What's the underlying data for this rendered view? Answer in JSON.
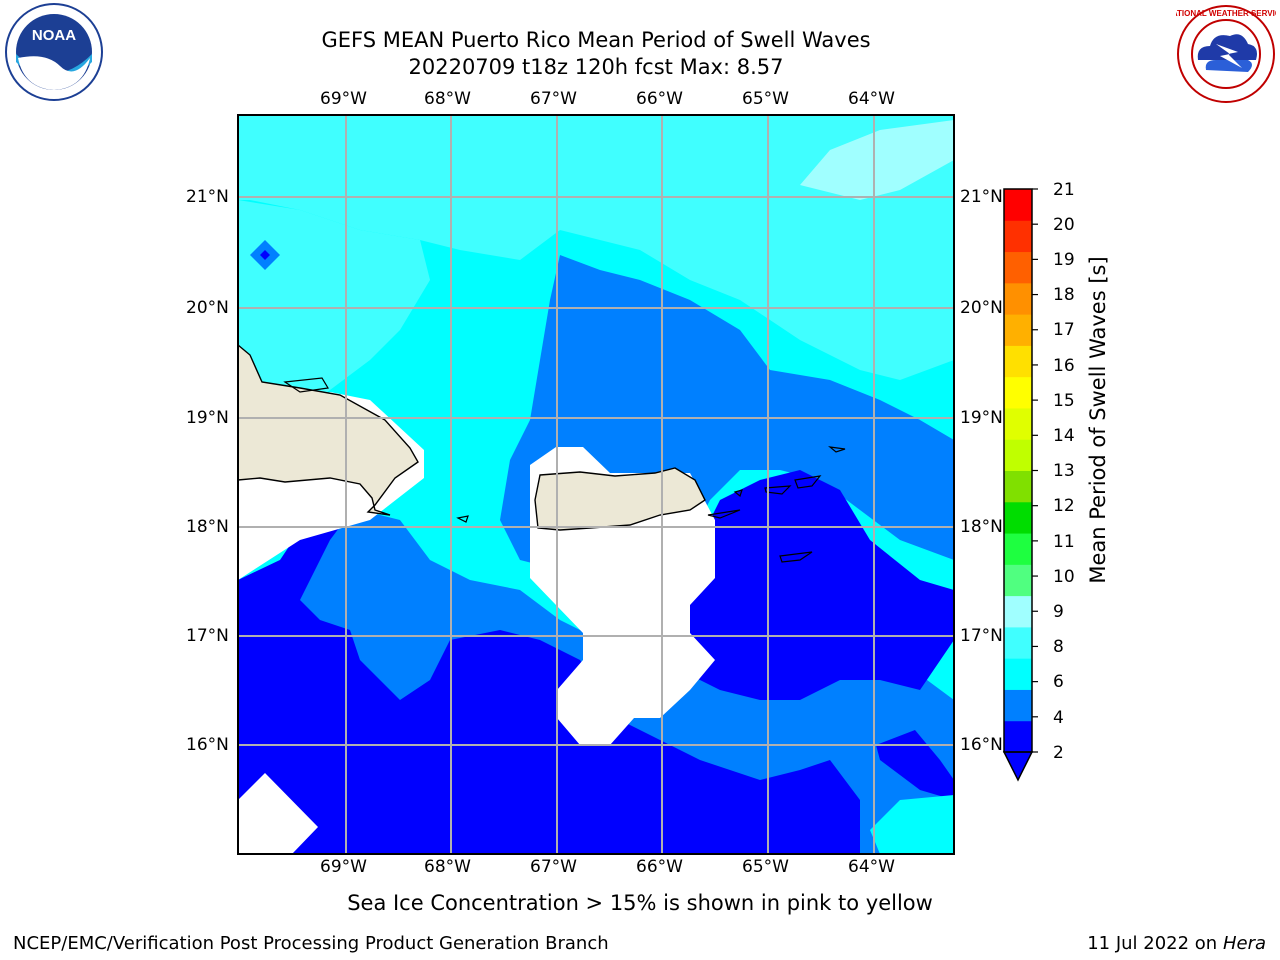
{
  "title": {
    "line1": "GEFS MEAN Puerto Rico Mean Period of Swell Waves",
    "line2": "20220709 t18z 120h fcst   Max: 8.57"
  },
  "logos": {
    "left": "noaa-logo",
    "right": "national-weather-service-logo",
    "left_text": "NOAA",
    "right_text": "NATIONAL WEATHER SERVICE"
  },
  "axes": {
    "lon_labels": [
      "69°W",
      "68°W",
      "67°W",
      "66°W",
      "65°W",
      "64°W"
    ],
    "lat_labels": [
      "21°N",
      "20°N",
      "19°N",
      "18°N",
      "17°N",
      "16°N"
    ],
    "grid": true
  },
  "colorbar": {
    "label": "Mean Period of Swell Waves [s]",
    "ticks": [
      "21",
      "20",
      "19",
      "18",
      "17",
      "16",
      "15",
      "14",
      "13",
      "12",
      "11",
      "10",
      "9",
      "8",
      "6",
      "4",
      "2"
    ],
    "colors": [
      "#0000ff",
      "#0080ff",
      "#00ffff",
      "#40ffff",
      "#a0ffff",
      "#50ff80",
      "#1eff40",
      "#00dd00",
      "#80e000",
      "#c0ff00",
      "#e0ff00",
      "#ffff00",
      "#ffe000",
      "#ffb000",
      "#ff9000",
      "#ff6000",
      "#ff3000",
      "#ff0000"
    ],
    "extend": "min"
  },
  "note": "Sea Ice Concentration > 15% is shown in pink to yellow",
  "footer": {
    "left": "NCEP/EMC/Verification Post Processing Product Generation Branch",
    "date": "11 Jul 2022 on ",
    "host": "Hera"
  }
}
